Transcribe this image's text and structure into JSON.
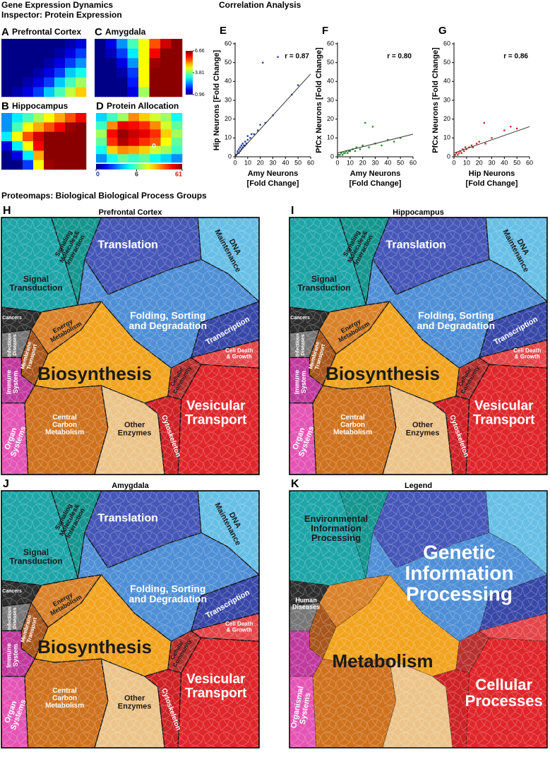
{
  "header": {
    "title": "Gene Expression Dynamics",
    "subtitle": "Inspector: Protein Expression"
  },
  "correlation_title": "Correlation Analysis",
  "chart_data": [
    {
      "type": "heatmap",
      "label": "A",
      "title": "Prefrontal Cortex",
      "clim": [
        0.96,
        6.66
      ],
      "values": [
        [
          1,
          1,
          1,
          1,
          1,
          1,
          1.2,
          1.5
        ],
        [
          1,
          1,
          1,
          1,
          1,
          1.2,
          1.5,
          2
        ],
        [
          1,
          1,
          1,
          1,
          1.2,
          1.5,
          2,
          2.5
        ],
        [
          1,
          1,
          1,
          1.2,
          1.5,
          2,
          2.8,
          3.2
        ],
        [
          1,
          1,
          1.2,
          1.5,
          2,
          2.8,
          3.5,
          4
        ],
        [
          1,
          1.2,
          1.5,
          2,
          2.8,
          3.5,
          4.2,
          4.8
        ]
      ]
    },
    {
      "type": "heatmap",
      "label": "B",
      "title": "Hippocampus",
      "clim": [
        0.96,
        6.66
      ],
      "values": [
        [
          2.5,
          3,
          3.5,
          4,
          4.5,
          5,
          5.5,
          6
        ],
        [
          2.5,
          3.5,
          4.5,
          5,
          5.5,
          6,
          6.5,
          6.6
        ],
        [
          3,
          4.5,
          5.5,
          6.2,
          6.6,
          6.6,
          6.6,
          6.6
        ],
        [
          1.5,
          3,
          4.5,
          6,
          6.6,
          6.6,
          6.6,
          6.6
        ],
        [
          1,
          1.5,
          3,
          5,
          6.6,
          6.6,
          6.6,
          6.6
        ],
        [
          1,
          1,
          2,
          4.5,
          6.5,
          6.6,
          6.6,
          6.6
        ]
      ]
    },
    {
      "type": "heatmap",
      "label": "C",
      "title": "Amygdala",
      "clim": [
        0.96,
        6.66
      ],
      "cticks": [
        0.96,
        3.81,
        6.66
      ],
      "values": [
        [
          1,
          1.5,
          2.5,
          3.5,
          4.5,
          5.5,
          6.2,
          6.6
        ],
        [
          1,
          1.3,
          2,
          3,
          4.5,
          6,
          6.6,
          6.6
        ],
        [
          1,
          1,
          1.5,
          2.5,
          4.5,
          6.5,
          6.6,
          6.6
        ],
        [
          1,
          1,
          1.2,
          2,
          4.5,
          6.6,
          6.6,
          6.6
        ],
        [
          1,
          1,
          1,
          1.8,
          4.5,
          6.6,
          6.6,
          6.6
        ],
        [
          1,
          1,
          1,
          1.5,
          4,
          6.6,
          6.6,
          6.6
        ]
      ]
    },
    {
      "type": "heatmap",
      "label": "D",
      "title": "Protein Allocation",
      "clim": [
        0,
        61
      ],
      "colorscale": "log1p",
      "cticks": [
        0,
        6,
        61
      ],
      "annotation": "0",
      "values": [
        [
          3,
          5,
          8,
          20,
          15,
          10,
          8,
          4
        ],
        [
          5,
          20,
          40,
          35,
          30,
          20,
          10,
          6
        ],
        [
          8,
          35,
          55,
          45,
          40,
          30,
          15,
          8
        ],
        [
          6,
          30,
          50,
          40,
          30,
          25,
          12,
          6
        ],
        [
          4,
          15,
          20,
          18,
          15,
          10,
          8,
          5
        ],
        [
          2,
          4,
          6,
          5,
          6,
          4,
          3,
          2
        ]
      ]
    },
    {
      "type": "scatter",
      "label": "E",
      "ylabel": "Hip Neurons [Fold Change]",
      "xlabel": [
        "Amy Neurons",
        "[Fold Change]"
      ],
      "annotation": "r = 0.87",
      "color": "#2b3f9e",
      "xlim": [
        0,
        60
      ],
      "ylim": [
        0,
        60
      ],
      "xticks": [
        0,
        10,
        20,
        30,
        40,
        50,
        60
      ],
      "yticks": [
        0,
        10,
        20,
        30,
        40,
        50,
        60
      ],
      "x": [
        1,
        2,
        2,
        3,
        3,
        4,
        4,
        5,
        5,
        6,
        6,
        7,
        8,
        8,
        9,
        10,
        10,
        12,
        13,
        15,
        18,
        20,
        24,
        30,
        45,
        50,
        22,
        34
      ],
      "y": [
        1,
        2,
        3,
        2,
        4,
        3,
        5,
        4,
        6,
        5,
        7,
        6,
        6,
        8,
        7,
        9,
        11,
        10,
        12,
        12,
        14,
        17,
        18,
        22,
        33,
        38,
        50,
        53
      ],
      "fit": {
        "x": [
          0,
          60
        ],
        "y": [
          0,
          44
        ]
      }
    },
    {
      "type": "scatter",
      "label": "F",
      "ylabel": "PfCx Neurons [Fold Change]",
      "xlabel": [
        "Amy Neurons",
        "[Fold Change]"
      ],
      "annotation": "r = 0.80",
      "color": "#2e8b2e",
      "xlim": [
        0,
        60
      ],
      "ylim": [
        0,
        60
      ],
      "xticks": [
        0,
        10,
        20,
        30,
        40,
        50,
        60
      ],
      "yticks": [
        0,
        10,
        20,
        30,
        40,
        50,
        60
      ],
      "x": [
        1,
        2,
        3,
        4,
        5,
        6,
        7,
        8,
        9,
        10,
        12,
        14,
        15,
        18,
        20,
        25,
        30,
        35,
        40,
        45,
        50,
        22,
        28
      ],
      "y": [
        1,
        1,
        2,
        1,
        2,
        2,
        3,
        2,
        3,
        3,
        4,
        3,
        5,
        4,
        6,
        5,
        7,
        6,
        9,
        8,
        10,
        18,
        16
      ],
      "fit": {
        "x": [
          0,
          60
        ],
        "y": [
          2,
          12
        ]
      }
    },
    {
      "type": "scatter",
      "label": "G",
      "ylabel": "PfCx Neurons [Fold Change]",
      "xlabel": [
        "Hip Neurons",
        "[Fold Change]"
      ],
      "annotation": "r = 0.86",
      "color": "#d62728",
      "xlim": [
        0,
        60
      ],
      "ylim": [
        0,
        60
      ],
      "xticks": [
        0,
        10,
        20,
        30,
        40,
        50,
        60
      ],
      "yticks": [
        0,
        10,
        20,
        30,
        40,
        50,
        60
      ],
      "x": [
        1,
        2,
        3,
        4,
        5,
        6,
        7,
        8,
        9,
        10,
        12,
        14,
        15,
        18,
        20,
        25,
        30,
        40,
        45,
        50,
        24
      ],
      "y": [
        1,
        2,
        1,
        2,
        3,
        2,
        4,
        3,
        5,
        4,
        5,
        6,
        5,
        7,
        8,
        7,
        10,
        14,
        16,
        15,
        18
      ],
      "fit": {
        "x": [
          0,
          60
        ],
        "y": [
          2,
          16
        ]
      }
    }
  ],
  "proteomaps": {
    "title": "Proteomaps: Biological Biological Process Groups",
    "maps": [
      {
        "label": "H",
        "title": "Prefrontal Cortex",
        "regions": [
          [
            "Signal",
            "Transduction"
          ],
          [
            "Signaling",
            "Molecules&",
            "Interaction"
          ],
          [
            "Translation"
          ],
          [
            "DNA",
            "Maintenance"
          ],
          [
            "Folding, Sorting",
            "and Degradation"
          ],
          [
            "Transcription"
          ],
          [
            "Cancers"
          ],
          [
            "Infectious",
            "Diseases"
          ],
          [
            "Energy",
            "Metabolism"
          ],
          [
            "Membrane",
            "Transport"
          ],
          [
            "Biosynthesis"
          ],
          [
            "Immune",
            "System"
          ],
          [
            "Organ",
            "Systems"
          ],
          [
            "Central",
            "Carbon",
            "Metabolism"
          ],
          [
            "Other",
            "Enzymes"
          ],
          [
            "Cellular",
            "Community"
          ],
          [
            "Cell Death",
            "& Growth"
          ],
          [
            "Vesicular",
            "Transport"
          ],
          [
            "Cytoskeleton"
          ]
        ]
      },
      {
        "label": "I",
        "title": "Hippocampus",
        "regions": [
          [
            "Signal",
            "Transduction"
          ],
          [
            "Signaling",
            "Molecules&",
            "Interaction"
          ],
          [
            "Translation"
          ],
          [
            "DNA",
            "Maintenance"
          ],
          [
            "Folding, Sorting",
            "and Degradation"
          ],
          [
            "Transcription"
          ],
          [
            "Cancers"
          ],
          [
            "Infectious",
            "Diseases"
          ],
          [
            "Energy",
            "Metabolism"
          ],
          [
            "Membrane",
            "Transport"
          ],
          [
            "Biosynthesis"
          ],
          [
            "Immune",
            "System"
          ],
          [
            "Organ",
            "Systems"
          ],
          [
            "Central",
            "Carbon",
            "Metabolism"
          ],
          [
            "Other",
            "Enzymes"
          ],
          [
            "Cellular",
            "Community"
          ],
          [
            "Cell Death",
            "& Growth"
          ],
          [
            "Vesicular",
            "Transport"
          ],
          [
            "Cytoskeleton"
          ]
        ]
      },
      {
        "label": "J",
        "title": "Amygdala",
        "regions": [
          [
            "Signal",
            "Transduction"
          ],
          [
            "Signaling",
            "Molecules&",
            "Interaction"
          ],
          [
            "Translation"
          ],
          [
            "DNA",
            "Maintenance"
          ],
          [
            "Folding, Sorting",
            "and Degradation"
          ],
          [
            "Transcription"
          ],
          [
            "Cancers"
          ],
          [
            "Infectious",
            "Diseases"
          ],
          [
            "Energy",
            "Metabolism"
          ],
          [
            "Membrane",
            "Transport"
          ],
          [
            "Biosynthesis"
          ],
          [
            "Immune",
            "System"
          ],
          [
            "Organ",
            "Systems"
          ],
          [
            "Central",
            "Carbon",
            "Metabolism"
          ],
          [
            "Other",
            "Enzymes"
          ],
          [
            "Cellular",
            "Community"
          ],
          [
            "Cell Death",
            "& Growth"
          ],
          [
            "Vesicular",
            "Transport"
          ],
          [
            "Cytoskeleton"
          ]
        ]
      },
      {
        "label": "K",
        "title": "Legend",
        "regions": [
          [
            "Environmental",
            "Information",
            "Processing"
          ],
          [
            "Genetic",
            "Information",
            "Processing"
          ],
          [
            "Human",
            "Diseases"
          ],
          [
            "Metabolism"
          ],
          [
            "Organismal",
            "Systems"
          ],
          [
            "Cellular",
            "Processes"
          ]
        ]
      }
    ]
  }
}
